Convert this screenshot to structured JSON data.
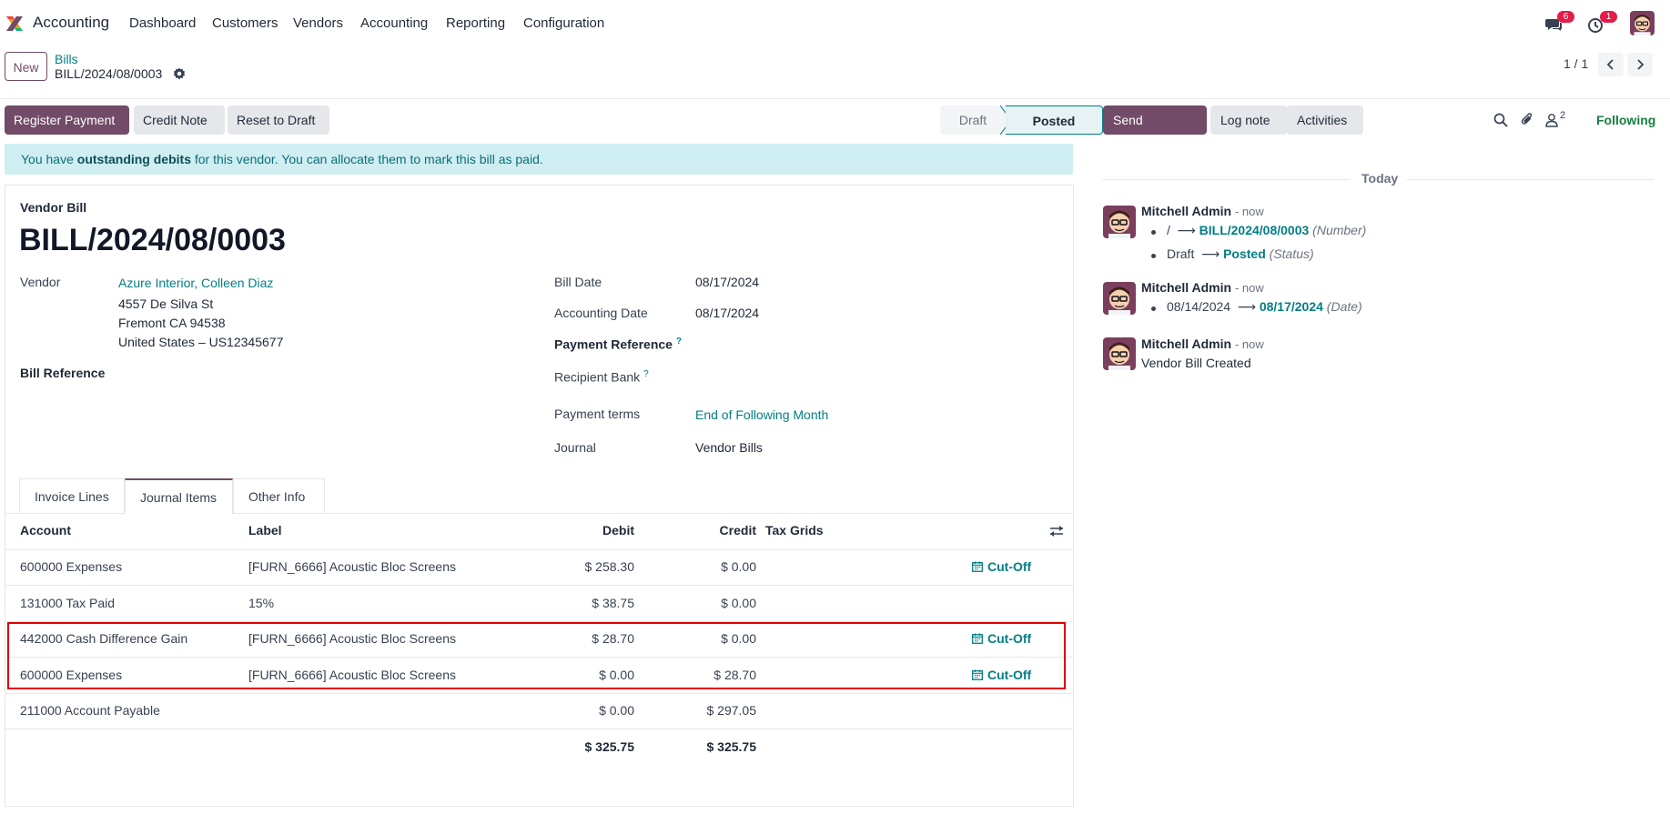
{
  "navbar": {
    "app_name": "Accounting",
    "menu": [
      "Dashboard",
      "Customers",
      "Vendors",
      "Accounting",
      "Reporting",
      "Configuration"
    ],
    "messages_badge": "6",
    "activities_badge": "1",
    "brand_color": "#714b67"
  },
  "control_panel": {
    "new_label": "New",
    "breadcrumb_parent": "Bills",
    "breadcrumb_current": "BILL/2024/08/0003",
    "pager": "1 / 1"
  },
  "actions": {
    "register_payment": "Register Payment",
    "credit_note": "Credit Note",
    "reset_to_draft": "Reset to Draft"
  },
  "statusbar": {
    "stages": [
      "Draft",
      "Posted"
    ],
    "current": "Posted"
  },
  "alert": {
    "prefix": "You have ",
    "strong": "outstanding debits",
    "suffix": " for this vendor. You can allocate them to mark this bill as paid."
  },
  "form": {
    "type_label": "Vendor Bill",
    "number": "BILL/2024/08/0003",
    "vendor_label": "Vendor",
    "vendor_name": "Azure Interior, Colleen Diaz",
    "vendor_address": [
      "4557 De Silva St",
      "Fremont CA 94538",
      "United States – US12345677"
    ],
    "bill_reference_label": "Bill Reference",
    "bill_date_label": "Bill Date",
    "bill_date": "08/17/2024",
    "accounting_date_label": "Accounting Date",
    "accounting_date": "08/17/2024",
    "payment_reference_label": "Payment Reference",
    "recipient_bank_label": "Recipient Bank",
    "payment_terms_label": "Payment terms",
    "payment_terms": "End of Following Month",
    "journal_label": "Journal",
    "journal": "Vendor Bills",
    "help_mark": "?"
  },
  "tabs": [
    "Invoice Lines",
    "Journal Items",
    "Other Info"
  ],
  "journal_items": {
    "headers": {
      "account": "Account",
      "label": "Label",
      "debit": "Debit",
      "credit": "Credit",
      "tax_grids": "Tax Grids"
    },
    "rows": [
      {
        "account": "600000 Expenses",
        "label": "[FURN_6666] Acoustic Bloc Screens",
        "debit": "$ 258.30",
        "credit": "$ 0.00",
        "cutoff": "Cut-Off"
      },
      {
        "account": "131000 Tax Paid",
        "label": "15%",
        "debit": "$ 38.75",
        "credit": "$ 0.00",
        "cutoff": ""
      },
      {
        "account": "442000 Cash Difference Gain",
        "label": "[FURN_6666] Acoustic Bloc Screens",
        "debit": "$ 28.70",
        "credit": "$ 0.00",
        "cutoff": "Cut-Off"
      },
      {
        "account": "600000 Expenses",
        "label": "[FURN_6666] Acoustic Bloc Screens",
        "debit": "$ 0.00",
        "credit": "$ 28.70",
        "cutoff": "Cut-Off"
      },
      {
        "account": "211000 Account Payable",
        "label": "",
        "debit": "$ 0.00",
        "credit": "$ 297.05",
        "cutoff": ""
      }
    ],
    "total_debit": "$ 325.75",
    "total_credit": "$ 325.75"
  },
  "chatter": {
    "send_message": "Send message",
    "log_note": "Log note",
    "activities": "Activities",
    "followers_count": "2",
    "following": "Following",
    "today": "Today",
    "messages": [
      {
        "author": "Mitchell Admin",
        "when": "- now",
        "tracks": [
          {
            "old": "/",
            "new": "BILL/2024/08/0003",
            "field": "(Number)"
          },
          {
            "old": "Draft",
            "new": "Posted",
            "field": "(Status)"
          }
        ]
      },
      {
        "author": "Mitchell Admin",
        "when": "- now",
        "tracks": [
          {
            "old": "08/14/2024",
            "new": "08/17/2024",
            "field": "(Date)"
          }
        ]
      },
      {
        "author": "Mitchell Admin",
        "when": "- now",
        "body": "Vendor Bill Created"
      }
    ]
  }
}
